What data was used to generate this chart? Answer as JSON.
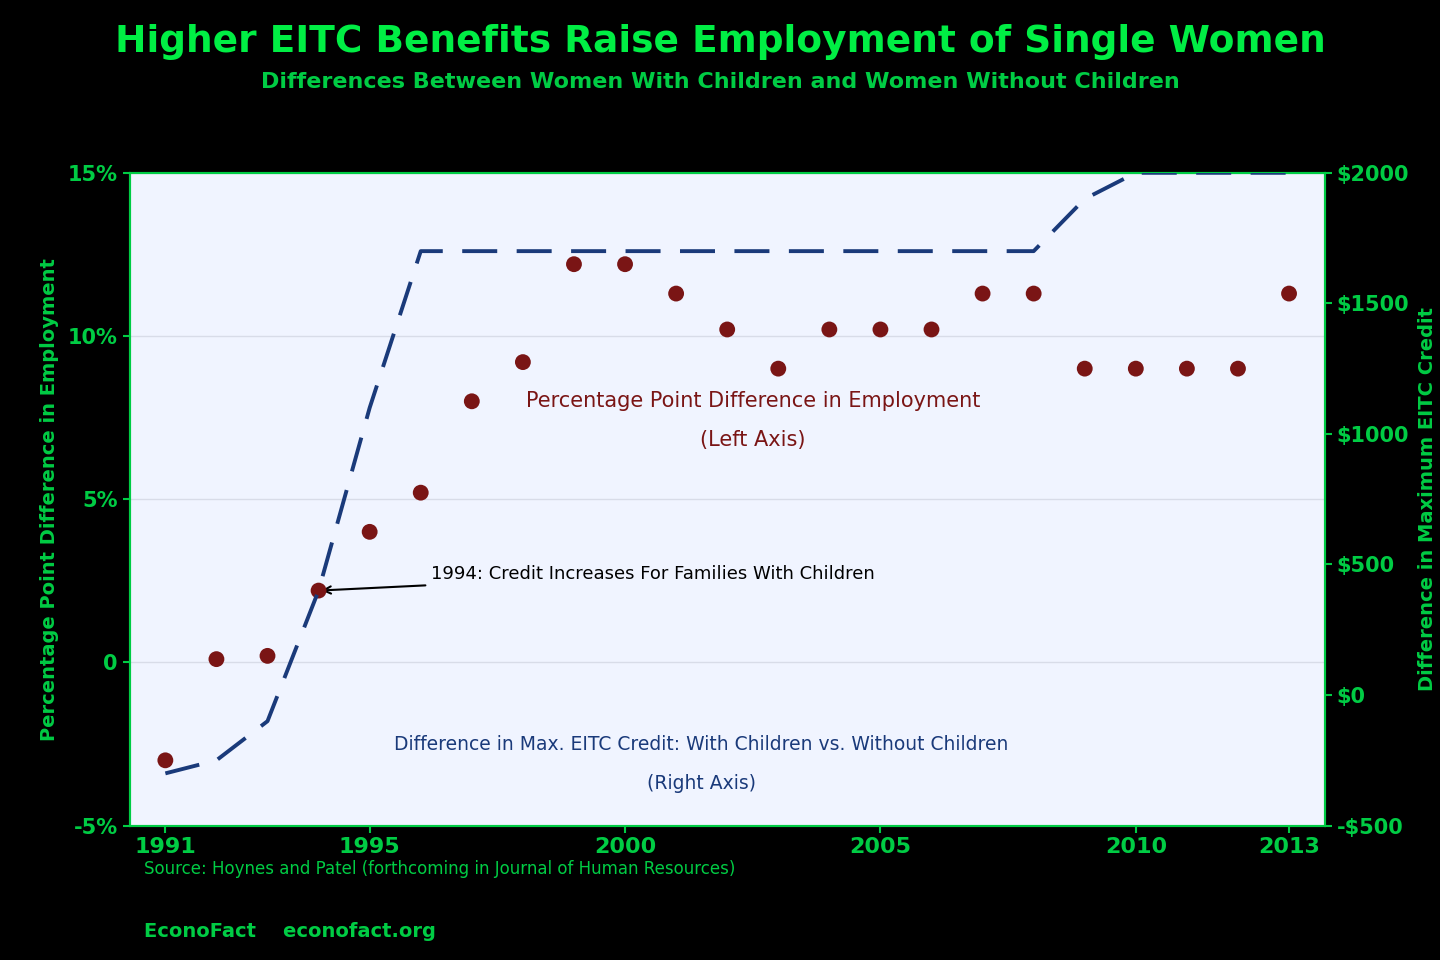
{
  "title": "Higher EITC Benefits Raise Employment of Single Women",
  "subtitle": "Differences Between Women With Children and Women Without Children",
  "title_color": "#00ee44",
  "subtitle_color": "#00cc44",
  "background_color": "#000000",
  "plot_bg_color": "#f0f4ff",
  "ylabel_left": "Percentage Point Difference in Employment",
  "ylabel_right": "Difference in Maximum EITC Credit",
  "ylabel_color": "#00cc44",
  "scatter_years": [
    1991,
    1992,
    1993,
    1994,
    1995,
    1996,
    1997,
    1998,
    1999,
    2000,
    2001,
    2002,
    2003,
    2004,
    2005,
    2006,
    2007,
    2008,
    2009,
    2010,
    2011,
    2012,
    2013
  ],
  "scatter_values": [
    -3.0,
    0.1,
    0.2,
    2.2,
    4.0,
    5.2,
    8.0,
    9.2,
    12.2,
    12.2,
    11.3,
    10.2,
    9.0,
    10.2,
    10.2,
    10.2,
    11.3,
    11.3,
    9.0,
    9.0,
    9.0,
    9.0,
    11.3
  ],
  "scatter_color": "#7a1515",
  "scatter_size": 130,
  "line_years": [
    1991,
    1992,
    1993,
    1994,
    1995,
    1996,
    1997,
    1998,
    1999,
    2000,
    2001,
    2002,
    2003,
    2004,
    2005,
    2006,
    2007,
    2008,
    2009,
    2010,
    2011,
    2012,
    2013
  ],
  "line_values": [
    -300,
    -250,
    -100,
    400,
    1100,
    1700,
    1700,
    1700,
    1700,
    1700,
    1700,
    1700,
    1700,
    1700,
    1700,
    1700,
    1700,
    1700,
    1900,
    2000,
    2000,
    2000,
    2000
  ],
  "line_color": "#1a3a7a",
  "line_width": 2.8,
  "ylim_left": [
    -5,
    15
  ],
  "ylim_right": [
    -500,
    2000
  ],
  "yticks_left": [
    -5,
    0,
    5,
    10,
    15
  ],
  "ytick_labels_left": [
    "-5%",
    "0",
    "5%",
    "10%",
    "15%"
  ],
  "yticks_right": [
    -500,
    0,
    500,
    1000,
    1500,
    2000
  ],
  "ytick_labels_right": [
    "-$500",
    "$0",
    "$500",
    "$1000",
    "$1500",
    "$2000"
  ],
  "xticks": [
    1991,
    1995,
    2000,
    2005,
    2010,
    2013
  ],
  "xlim": [
    1990.3,
    2013.7
  ],
  "tick_color": "#00cc44",
  "grid_color": "#d8dce8",
  "annotation_text": "1994: Credit Increases For Families With Children",
  "source_text": "Source: Hoynes and Patel (forthcoming in Journal of Human Resources)",
  "econofact_text": "EconoFact    econofact.org",
  "label_scatter_line1": "Percentage Point Difference in Employment",
  "label_scatter_line2": "(Left Axis)",
  "label_line_line1": "Difference in Max. EITC Credit: With Children vs. Without Children",
  "label_line_line2": "(Right Axis)"
}
